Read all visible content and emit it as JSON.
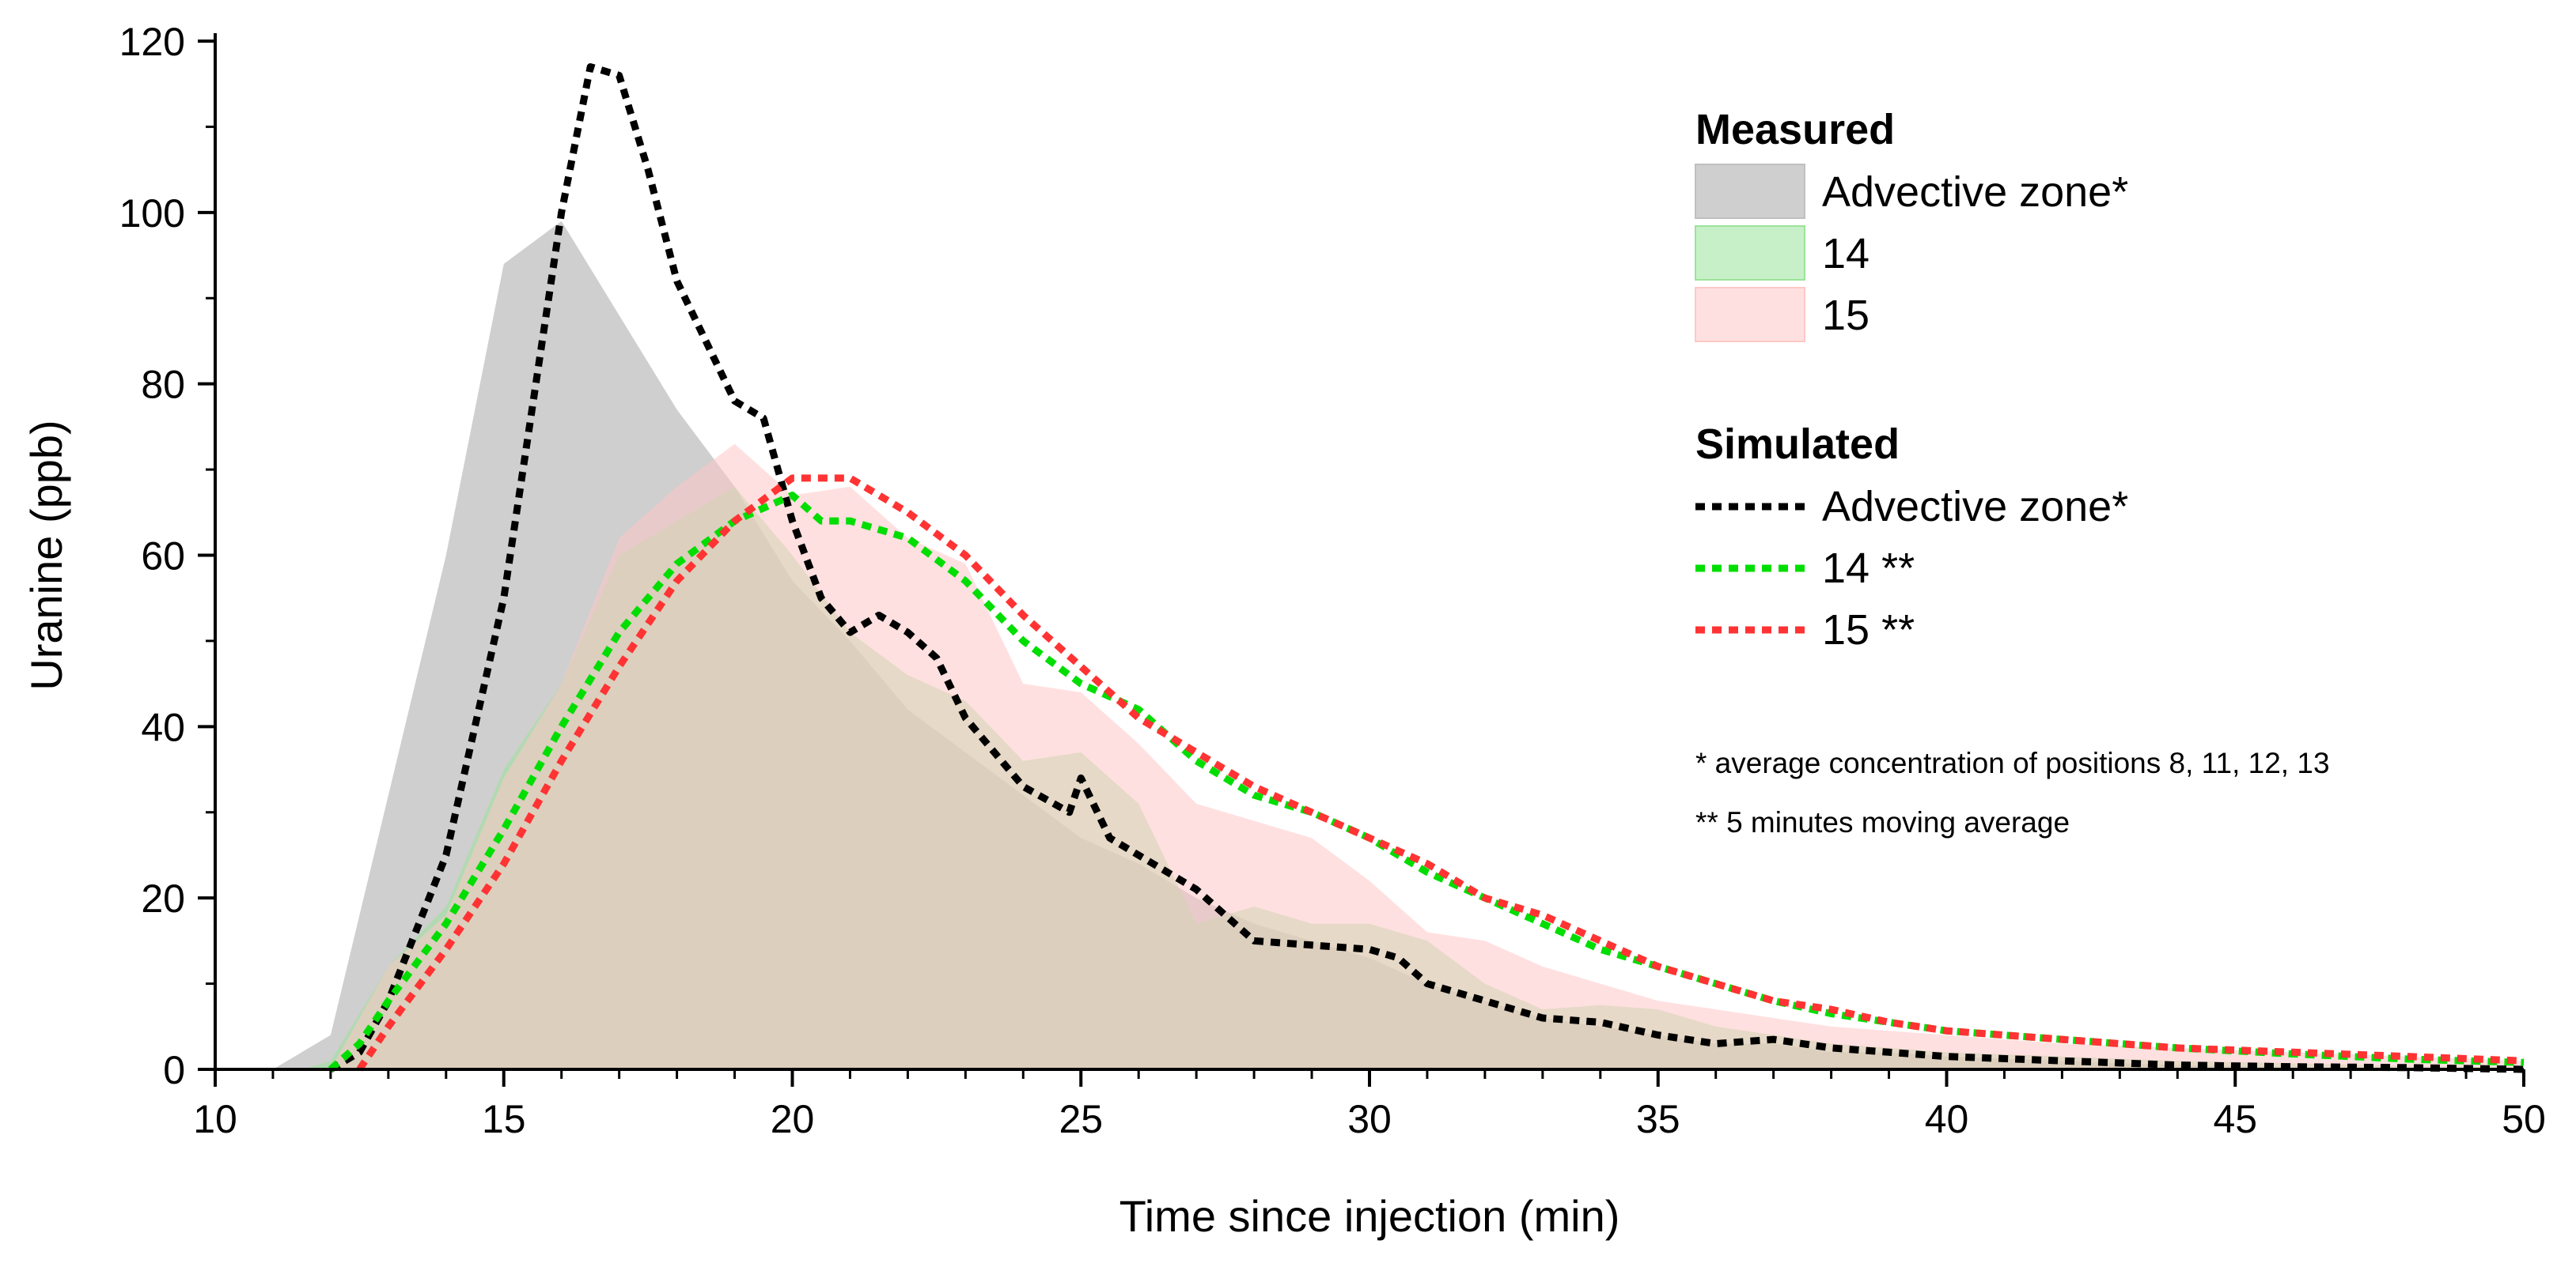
{
  "chart_data": {
    "type": "area",
    "xlabel": "Time since injection (min)",
    "ylabel": "Uranine (ppb)",
    "xlim": [
      10,
      50
    ],
    "ylim": [
      0,
      120
    ],
    "xticks": [
      10,
      15,
      20,
      25,
      30,
      35,
      40,
      45,
      50
    ],
    "yticks": [
      0,
      20,
      40,
      60,
      80,
      100,
      120
    ],
    "grid": false,
    "legend_position": "top-right",
    "legend": {
      "measured_title": "Measured",
      "simulated_title": "Simulated",
      "notes": [
        "* average concentration of positions 8, 11, 12, 13",
        "** 5 minutes moving average"
      ]
    },
    "series": [
      {
        "name": "Advective zone*",
        "group": "measured",
        "style": "area",
        "color": "#bfbfbf",
        "x": [
          11,
          12,
          13,
          14,
          15,
          16,
          17,
          18,
          19,
          20,
          21,
          22,
          23,
          24,
          25,
          26,
          27,
          28,
          29,
          30,
          31,
          32,
          33,
          34,
          35,
          36,
          37,
          38,
          39,
          40,
          42,
          44,
          46,
          48,
          50
        ],
        "y": [
          0,
          4,
          32,
          60,
          94,
          99,
          88,
          77,
          68,
          57,
          50,
          42,
          37,
          32,
          27,
          24,
          20,
          17,
          15,
          13,
          10,
          8,
          6,
          5,
          4,
          3,
          3,
          2,
          2,
          1.5,
          1,
          0.5,
          0.3,
          0.2,
          0
        ]
      },
      {
        "name": "14",
        "group": "measured",
        "style": "area",
        "color": "#9be39b",
        "x": [
          11.5,
          12,
          13,
          14,
          15,
          16,
          17,
          18,
          19,
          20,
          21,
          22,
          23,
          24,
          25,
          26,
          27,
          28,
          29,
          30,
          31,
          32,
          33,
          34,
          35,
          36,
          37,
          38,
          39,
          40,
          42,
          44,
          46,
          48,
          50
        ],
        "y": [
          0,
          1,
          12,
          19,
          35,
          45,
          60,
          64,
          68,
          60,
          51,
          46,
          43,
          36,
          37,
          31,
          17,
          19,
          17,
          17,
          15,
          10,
          7,
          7.5,
          7,
          5,
          4,
          3,
          2.5,
          2,
          1.5,
          1,
          0.7,
          0.4,
          0.2
        ]
      },
      {
        "name": "15",
        "group": "measured",
        "style": "area",
        "color": "#ffc7c7",
        "x": [
          12,
          13,
          14,
          15,
          16,
          17,
          18,
          19,
          20,
          21,
          22,
          23,
          24,
          25,
          26,
          27,
          28,
          29,
          30,
          31,
          32,
          33,
          34,
          35,
          36,
          37,
          38,
          39,
          40,
          42,
          44,
          46,
          48,
          50
        ],
        "y": [
          0,
          12,
          18,
          34,
          45,
          62,
          68,
          73,
          67,
          68,
          62,
          59,
          45,
          44,
          38,
          31,
          29,
          27,
          22,
          16,
          15,
          12,
          10,
          8,
          7,
          6,
          5,
          4.5,
          4,
          3,
          2.5,
          2,
          1.5,
          1
        ]
      },
      {
        "name": "Advective zone*",
        "group": "simulated",
        "style": "dashed",
        "color": "#000000",
        "x": [
          12,
          12.5,
          13,
          14,
          15,
          16,
          16.5,
          17,
          17.5,
          18,
          19,
          19.5,
          20,
          20.5,
          21,
          21.5,
          22,
          22.5,
          23,
          24,
          24.8,
          25,
          25.5,
          26,
          27,
          28,
          29,
          30,
          30.5,
          31,
          32,
          33,
          34,
          35,
          36,
          37,
          38,
          39,
          40,
          42,
          44,
          46,
          48,
          50
        ],
        "y": [
          0,
          2,
          8,
          25,
          55,
          100,
          117,
          116,
          105,
          92,
          78,
          76,
          64,
          55,
          51,
          53,
          51,
          48,
          41,
          33,
          30,
          34,
          27,
          25,
          21,
          15,
          14.5,
          14,
          13,
          10,
          8,
          6,
          5.5,
          4,
          3,
          3.5,
          2.5,
          2,
          1.5,
          1,
          0.5,
          0.3,
          0.2,
          0
        ]
      },
      {
        "name": "14 **",
        "group": "simulated",
        "style": "dashed",
        "color": "#00dd00",
        "x": [
          12,
          12.5,
          13,
          14,
          15,
          16,
          17,
          18,
          19,
          20,
          20.5,
          21,
          22,
          23,
          24,
          25,
          26,
          27,
          28,
          29,
          30,
          31,
          32,
          33,
          34,
          35,
          36,
          37,
          38,
          39,
          40,
          42,
          44,
          46,
          48,
          50
        ],
        "y": [
          0,
          3,
          8,
          17,
          28,
          40,
          51,
          59,
          64,
          67,
          64,
          64,
          62,
          57,
          50,
          45,
          42,
          36,
          32,
          30,
          27,
          23,
          20,
          17,
          14,
          12,
          10,
          8,
          6.5,
          5.5,
          4.5,
          3.5,
          2.5,
          1.8,
          1.2,
          0.8
        ]
      },
      {
        "name": "15 **",
        "group": "simulated",
        "style": "dashed",
        "color": "#ff3333",
        "x": [
          12.5,
          13,
          14,
          15,
          16,
          17,
          18,
          19,
          20,
          21,
          22,
          23,
          24,
          25,
          26,
          27,
          28,
          29,
          30,
          31,
          32,
          33,
          34,
          35,
          36,
          37,
          38,
          39,
          40,
          42,
          44,
          46,
          48,
          50
        ],
        "y": [
          0,
          5,
          14,
          24,
          36,
          47,
          57,
          64,
          69,
          69,
          65,
          60,
          53,
          47,
          41,
          37,
          33,
          30,
          27,
          24,
          20,
          18,
          15,
          12,
          10,
          8,
          7,
          5.5,
          4.5,
          3.5,
          2.5,
          2,
          1.5,
          1
        ]
      }
    ]
  }
}
